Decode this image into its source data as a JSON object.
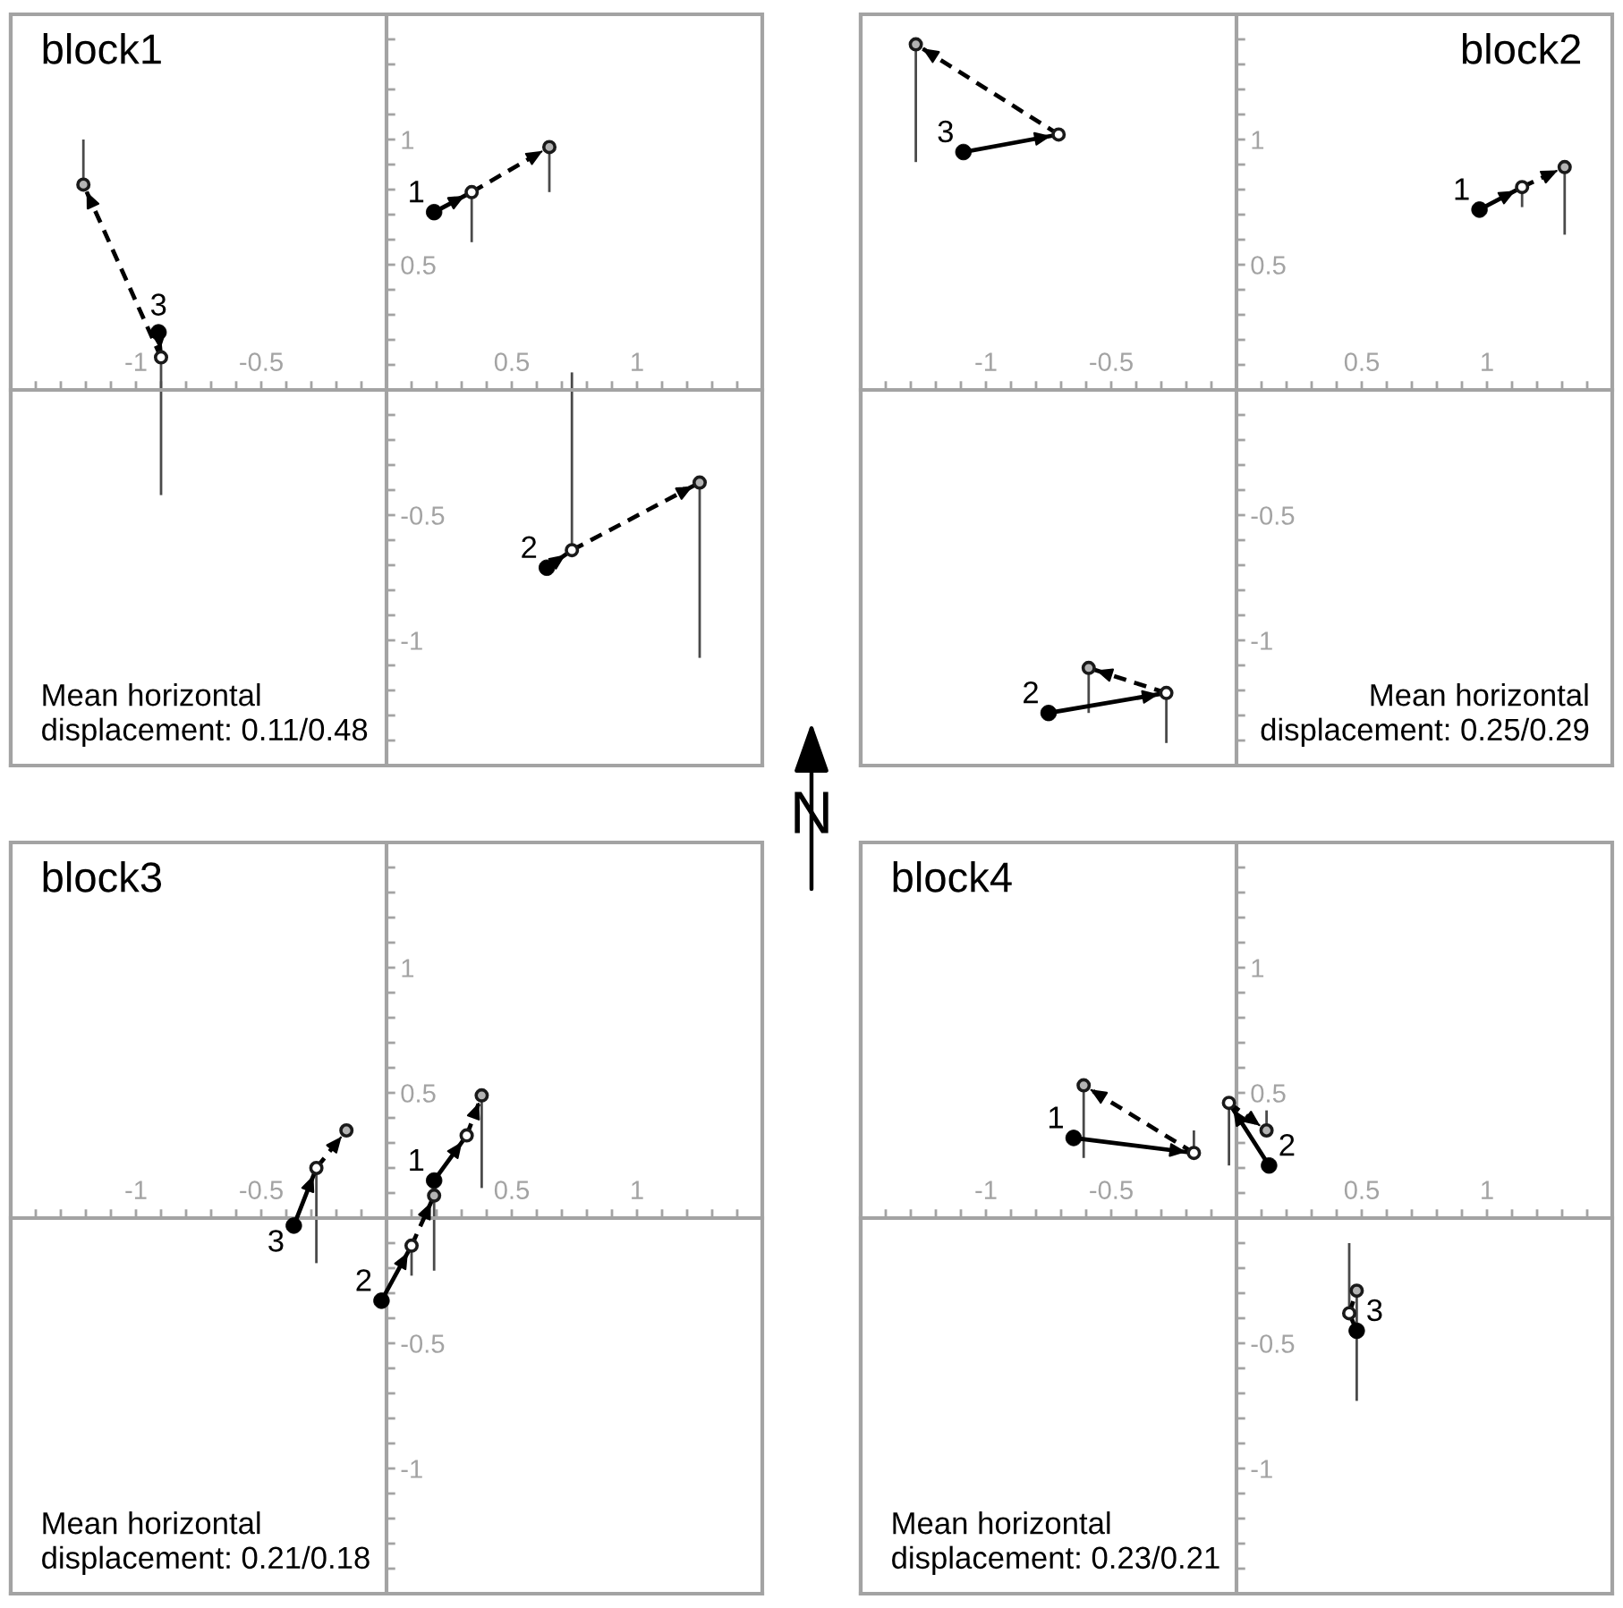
{
  "chart_data": [
    {
      "type": "scatter",
      "title": "block1",
      "xlim": [
        -1.5,
        1.5
      ],
      "ylim": [
        -1.5,
        1.5
      ],
      "xticks": [
        {
          "value": -1.4,
          "label": null
        },
        {
          "value": -1.3,
          "label": null
        },
        {
          "value": -1.2,
          "label": null
        },
        {
          "value": -1.1,
          "label": null
        },
        -1,
        {
          "value": -0.9,
          "label": null
        },
        {
          "value": -0.8,
          "label": null
        },
        {
          "value": -0.7,
          "label": null
        },
        {
          "value": -0.6,
          "label": null
        },
        -0.5,
        {
          "value": -0.4,
          "label": null
        },
        {
          "value": -0.3,
          "label": null
        },
        {
          "value": -0.2,
          "label": null
        },
        {
          "value": -0.1,
          "label": null
        },
        {
          "value": 0.1,
          "label": null
        },
        {
          "value": 0.2,
          "label": null
        },
        {
          "value": 0.3,
          "label": null
        },
        {
          "value": 0.4,
          "label": null
        },
        0.5,
        {
          "value": 0.6,
          "label": null
        },
        {
          "value": 0.7,
          "label": null
        },
        {
          "value": 0.8,
          "label": null
        },
        {
          "value": 0.9,
          "label": null
        },
        1,
        {
          "value": 1.1,
          "label": null
        },
        {
          "value": 1.2,
          "label": null
        },
        {
          "value": 1.3,
          "label": null
        },
        {
          "value": 1.4,
          "label": null
        }
      ],
      "yticks": [
        {
          "value": -1.4,
          "label": null
        },
        {
          "value": -1.3,
          "label": null
        },
        {
          "value": -1.2,
          "label": null
        },
        {
          "value": -1.1,
          "label": null
        },
        -1,
        {
          "value": -0.9,
          "label": null
        },
        {
          "value": -0.8,
          "label": null
        },
        {
          "value": -0.7,
          "label": null
        },
        {
          "value": -0.6,
          "label": null
        },
        -0.5,
        {
          "value": -0.4,
          "label": null
        },
        {
          "value": -0.3,
          "label": null
        },
        {
          "value": -0.2,
          "label": null
        },
        {
          "value": -0.1,
          "label": null
        },
        {
          "value": 0.1,
          "label": null
        },
        {
          "value": 0.2,
          "label": null
        },
        {
          "value": 0.3,
          "label": null
        },
        {
          "value": 0.4,
          "label": null
        },
        0.5,
        {
          "value": 0.6,
          "label": null
        },
        {
          "value": 0.7,
          "label": null
        },
        {
          "value": 0.8,
          "label": null
        },
        {
          "value": 0.9,
          "label": null
        },
        1,
        {
          "value": 1.1,
          "label": null
        },
        {
          "value": 1.2,
          "label": null
        },
        {
          "value": 1.3,
          "label": null
        },
        {
          "value": 1.4,
          "label": null
        }
      ],
      "series": [
        {
          "type": "scatter",
          "marker": "circle",
          "color": "#000000",
          "x": [
            0.19,
            0.64,
            -0.91
          ],
          "values": [
            0.71,
            -0.71,
            0.23
          ]
        },
        {
          "type": "scatter",
          "marker": "circle",
          "color": "#ffffff",
          "x": [
            0.34,
            0.74,
            -0.9
          ],
          "values": [
            0.79,
            -0.64,
            0.13
          ],
          "errors": [
            [
              0.59,
              0.79
            ],
            [
              -0.64,
              0.07
            ],
            [
              -0.42,
              0.13
            ]
          ]
        },
        {
          "type": "scatter",
          "marker": "circle",
          "color": "#b3b3b3",
          "x": [
            0.65,
            1.25,
            -1.21
          ],
          "values": [
            0.97,
            -0.37,
            0.82
          ],
          "errors": [
            [
              0.79,
              0.97
            ],
            [
              -1.07,
              -0.37
            ],
            [
              0.82,
              1.0
            ]
          ]
        },
        {
          "type": "line",
          "line_style": "solid",
          "color": "#000000",
          "x": [
            0.19,
            0.34
          ],
          "values": [
            0.71,
            0.79
          ]
        },
        {
          "type": "line",
          "line_style": "dashed",
          "color": "#000000",
          "x": [
            0.34,
            0.65
          ],
          "values": [
            0.79,
            0.97
          ]
        },
        {
          "type": "line",
          "line_style": "solid",
          "color": "#000000",
          "x": [
            0.64,
            0.74
          ],
          "values": [
            -0.71,
            -0.64
          ]
        },
        {
          "type": "line",
          "line_style": "dashed",
          "color": "#000000",
          "x": [
            0.74,
            1.25
          ],
          "values": [
            -0.64,
            -0.37
          ]
        },
        {
          "type": "line",
          "line_style": "solid",
          "color": "#000000",
          "x": [
            -0.91,
            -0.9
          ],
          "values": [
            0.23,
            0.13
          ]
        },
        {
          "type": "line",
          "line_style": "dashed",
          "color": "#000000",
          "x": [
            -0.9,
            -1.21
          ],
          "values": [
            0.13,
            0.82
          ]
        }
      ],
      "annotations": [
        {
          "text": "1",
          "x": 0.19,
          "y": 0.71
        },
        {
          "text": "2",
          "x": 0.64,
          "y": -0.71
        },
        {
          "text": "3",
          "x": -0.91,
          "y": 0.23
        },
        "Mean horizontal\ndisplacement: 0.11/0.48"
      ]
    },
    {
      "type": "scatter",
      "title": "block2",
      "xlim": [
        -1.5,
        1.5
      ],
      "ylim": [
        -1.5,
        1.5
      ],
      "xticks": [
        {
          "value": -1.4,
          "label": null
        },
        {
          "value": -1.3,
          "label": null
        },
        {
          "value": -1.2,
          "label": null
        },
        {
          "value": -1.1,
          "label": null
        },
        -1,
        {
          "value": -0.9,
          "label": null
        },
        {
          "value": -0.8,
          "label": null
        },
        {
          "value": -0.7,
          "label": null
        },
        {
          "value": -0.6,
          "label": null
        },
        -0.5,
        {
          "value": -0.4,
          "label": null
        },
        {
          "value": -0.3,
          "label": null
        },
        {
          "value": -0.2,
          "label": null
        },
        {
          "value": -0.1,
          "label": null
        },
        {
          "value": 0.1,
          "label": null
        },
        {
          "value": 0.2,
          "label": null
        },
        {
          "value": 0.3,
          "label": null
        },
        {
          "value": 0.4,
          "label": null
        },
        0.5,
        {
          "value": 0.6,
          "label": null
        },
        {
          "value": 0.7,
          "label": null
        },
        {
          "value": 0.8,
          "label": null
        },
        {
          "value": 0.9,
          "label": null
        },
        1,
        {
          "value": 1.1,
          "label": null
        },
        {
          "value": 1.2,
          "label": null
        },
        {
          "value": 1.3,
          "label": null
        },
        {
          "value": 1.4,
          "label": null
        }
      ],
      "yticks": [
        {
          "value": -1.4,
          "label": null
        },
        {
          "value": -1.3,
          "label": null
        },
        {
          "value": -1.2,
          "label": null
        },
        {
          "value": -1.1,
          "label": null
        },
        -1,
        {
          "value": -0.9,
          "label": null
        },
        {
          "value": -0.8,
          "label": null
        },
        {
          "value": -0.7,
          "label": null
        },
        {
          "value": -0.6,
          "label": null
        },
        -0.5,
        {
          "value": -0.4,
          "label": null
        },
        {
          "value": -0.3,
          "label": null
        },
        {
          "value": -0.2,
          "label": null
        },
        {
          "value": -0.1,
          "label": null
        },
        {
          "value": 0.1,
          "label": null
        },
        {
          "value": 0.2,
          "label": null
        },
        {
          "value": 0.3,
          "label": null
        },
        {
          "value": 0.4,
          "label": null
        },
        0.5,
        {
          "value": 0.6,
          "label": null
        },
        {
          "value": 0.7,
          "label": null
        },
        {
          "value": 0.8,
          "label": null
        },
        {
          "value": 0.9,
          "label": null
        },
        1,
        {
          "value": 1.1,
          "label": null
        },
        {
          "value": 1.2,
          "label": null
        },
        {
          "value": 1.3,
          "label": null
        },
        {
          "value": 1.4,
          "label": null
        }
      ],
      "series": [
        {
          "type": "scatter",
          "marker": "circle",
          "color": "#000000",
          "x": [
            0.97,
            -0.75,
            -1.09
          ],
          "values": [
            0.72,
            -1.29,
            0.95
          ]
        },
        {
          "type": "scatter",
          "marker": "circle",
          "color": "#ffffff",
          "x": [
            1.14,
            -0.28,
            -0.71
          ],
          "values": [
            0.81,
            -1.21,
            1.02
          ],
          "errors": [
            [
              0.73,
              0.81
            ],
            [
              -1.41,
              -1.21
            ],
            null
          ]
        },
        {
          "type": "scatter",
          "marker": "circle",
          "color": "#b3b3b3",
          "x": [
            1.31,
            -0.59,
            -1.28
          ],
          "values": [
            0.89,
            -1.11,
            1.38
          ],
          "errors": [
            [
              0.62,
              0.89
            ],
            [
              -1.29,
              -1.11
            ],
            [
              0.91,
              1.38
            ]
          ]
        },
        {
          "type": "line",
          "line_style": "solid",
          "color": "#000000",
          "x": [
            0.97,
            1.14
          ],
          "values": [
            0.72,
            0.81
          ]
        },
        {
          "type": "line",
          "line_style": "dashed",
          "color": "#000000",
          "x": [
            1.14,
            1.31
          ],
          "values": [
            0.81,
            0.89
          ]
        },
        {
          "type": "line",
          "line_style": "solid",
          "color": "#000000",
          "x": [
            -0.75,
            -0.28
          ],
          "values": [
            -1.29,
            -1.21
          ]
        },
        {
          "type": "line",
          "line_style": "dashed",
          "color": "#000000",
          "x": [
            -0.28,
            -0.59
          ],
          "values": [
            -1.21,
            -1.11
          ]
        },
        {
          "type": "line",
          "line_style": "solid",
          "color": "#000000",
          "x": [
            -1.09,
            -0.71
          ],
          "values": [
            0.95,
            1.02
          ]
        },
        {
          "type": "line",
          "line_style": "dashed",
          "color": "#000000",
          "x": [
            -0.71,
            -1.28
          ],
          "values": [
            1.02,
            1.38
          ]
        }
      ],
      "annotations": [
        {
          "text": "1",
          "x": 0.97,
          "y": 0.72
        },
        {
          "text": "2",
          "x": -0.75,
          "y": -1.29
        },
        {
          "text": "3",
          "x": -1.09,
          "y": 0.95
        },
        "Mean horizontal\ndisplacement: 0.25/0.29"
      ]
    },
    {
      "type": "other",
      "annotations": [
        "N"
      ]
    },
    {
      "type": "scatter",
      "title": "block3",
      "xlim": [
        -1.5,
        1.5
      ],
      "ylim": [
        -1.5,
        1.5
      ],
      "xticks": [
        {
          "value": -1.4,
          "label": null
        },
        {
          "value": -1.3,
          "label": null
        },
        {
          "value": -1.2,
          "label": null
        },
        {
          "value": -1.1,
          "label": null
        },
        -1,
        {
          "value": -0.9,
          "label": null
        },
        {
          "value": -0.8,
          "label": null
        },
        {
          "value": -0.7,
          "label": null
        },
        {
          "value": -0.6,
          "label": null
        },
        -0.5,
        {
          "value": -0.4,
          "label": null
        },
        {
          "value": -0.3,
          "label": null
        },
        {
          "value": -0.2,
          "label": null
        },
        {
          "value": -0.1,
          "label": null
        },
        {
          "value": 0.1,
          "label": null
        },
        {
          "value": 0.2,
          "label": null
        },
        {
          "value": 0.3,
          "label": null
        },
        {
          "value": 0.4,
          "label": null
        },
        0.5,
        {
          "value": 0.6,
          "label": null
        },
        {
          "value": 0.7,
          "label": null
        },
        {
          "value": 0.8,
          "label": null
        },
        {
          "value": 0.9,
          "label": null
        },
        1,
        {
          "value": 1.1,
          "label": null
        },
        {
          "value": 1.2,
          "label": null
        },
        {
          "value": 1.3,
          "label": null
        },
        {
          "value": 1.4,
          "label": null
        }
      ],
      "yticks": [
        {
          "value": -1.4,
          "label": null
        },
        {
          "value": -1.3,
          "label": null
        },
        {
          "value": -1.2,
          "label": null
        },
        {
          "value": -1.1,
          "label": null
        },
        -1,
        {
          "value": -0.9,
          "label": null
        },
        {
          "value": -0.8,
          "label": null
        },
        {
          "value": -0.7,
          "label": null
        },
        {
          "value": -0.6,
          "label": null
        },
        -0.5,
        {
          "value": -0.4,
          "label": null
        },
        {
          "value": -0.3,
          "label": null
        },
        {
          "value": -0.2,
          "label": null
        },
        {
          "value": -0.1,
          "label": null
        },
        {
          "value": 0.1,
          "label": null
        },
        {
          "value": 0.2,
          "label": null
        },
        {
          "value": 0.3,
          "label": null
        },
        {
          "value": 0.4,
          "label": null
        },
        0.5,
        {
          "value": 0.6,
          "label": null
        },
        {
          "value": 0.7,
          "label": null
        },
        {
          "value": 0.8,
          "label": null
        },
        {
          "value": 0.9,
          "label": null
        },
        1,
        {
          "value": 1.1,
          "label": null
        },
        {
          "value": 1.2,
          "label": null
        },
        {
          "value": 1.3,
          "label": null
        },
        {
          "value": 1.4,
          "label": null
        }
      ],
      "series": [
        {
          "type": "scatter",
          "marker": "circle",
          "color": "#000000",
          "x": [
            0.19,
            -0.02,
            -0.37
          ],
          "values": [
            0.15,
            -0.33,
            -0.03
          ]
        },
        {
          "type": "scatter",
          "marker": "circle",
          "color": "#ffffff",
          "x": [
            0.32,
            0.1,
            -0.28
          ],
          "values": [
            0.33,
            -0.11,
            0.2
          ],
          "errors": [
            null,
            [
              -0.23,
              -0.11
            ],
            [
              -0.18,
              0.2
            ]
          ]
        },
        {
          "type": "scatter",
          "marker": "circle",
          "color": "#b3b3b3",
          "x": [
            0.38,
            0.19,
            -0.16
          ],
          "values": [
            0.49,
            0.09,
            0.35
          ],
          "errors": [
            [
              0.12,
              0.49
            ],
            [
              -0.21,
              0.09
            ],
            null
          ]
        },
        {
          "type": "line",
          "line_style": "solid",
          "color": "#000000",
          "x": [
            0.19,
            0.32
          ],
          "values": [
            0.15,
            0.33
          ]
        },
        {
          "type": "line",
          "line_style": "dashed",
          "color": "#000000",
          "x": [
            0.32,
            0.38
          ],
          "values": [
            0.33,
            0.49
          ]
        },
        {
          "type": "line",
          "line_style": "solid",
          "color": "#000000",
          "x": [
            -0.02,
            0.1
          ],
          "values": [
            -0.33,
            -0.11
          ]
        },
        {
          "type": "line",
          "line_style": "dashed",
          "color": "#000000",
          "x": [
            0.1,
            0.19
          ],
          "values": [
            -0.11,
            0.09
          ]
        },
        {
          "type": "line",
          "line_style": "solid",
          "color": "#000000",
          "x": [
            -0.37,
            -0.28
          ],
          "values": [
            -0.03,
            0.2
          ]
        },
        {
          "type": "line",
          "line_style": "dashed",
          "color": "#000000",
          "x": [
            -0.28,
            -0.16
          ],
          "values": [
            0.2,
            0.35
          ]
        }
      ],
      "annotations": [
        {
          "text": "1",
          "x": 0.19,
          "y": 0.15
        },
        {
          "text": "2",
          "x": -0.02,
          "y": -0.33
        },
        {
          "text": "3",
          "x": -0.37,
          "y": -0.03
        },
        "Mean horizontal\ndisplacement: 0.21/0.18"
      ]
    },
    {
      "type": "scatter",
      "title": "block4",
      "xlim": [
        -1.5,
        1.5
      ],
      "ylim": [
        -1.5,
        1.5
      ],
      "xticks": [
        {
          "value": -1.4,
          "label": null
        },
        {
          "value": -1.3,
          "label": null
        },
        {
          "value": -1.2,
          "label": null
        },
        {
          "value": -1.1,
          "label": null
        },
        -1,
        {
          "value": -0.9,
          "label": null
        },
        {
          "value": -0.8,
          "label": null
        },
        {
          "value": -0.7,
          "label": null
        },
        {
          "value": -0.6,
          "label": null
        },
        -0.5,
        {
          "value": -0.4,
          "label": null
        },
        {
          "value": -0.3,
          "label": null
        },
        {
          "value": -0.2,
          "label": null
        },
        {
          "value": -0.1,
          "label": null
        },
        {
          "value": 0.1,
          "label": null
        },
        {
          "value": 0.2,
          "label": null
        },
        {
          "value": 0.3,
          "label": null
        },
        {
          "value": 0.4,
          "label": null
        },
        0.5,
        {
          "value": 0.6,
          "label": null
        },
        {
          "value": 0.7,
          "label": null
        },
        {
          "value": 0.8,
          "label": null
        },
        {
          "value": 0.9,
          "label": null
        },
        1,
        {
          "value": 1.1,
          "label": null
        },
        {
          "value": 1.2,
          "label": null
        },
        {
          "value": 1.3,
          "label": null
        },
        {
          "value": 1.4,
          "label": null
        }
      ],
      "yticks": [
        {
          "value": -1.4,
          "label": null
        },
        {
          "value": -1.3,
          "label": null
        },
        {
          "value": -1.2,
          "label": null
        },
        {
          "value": -1.1,
          "label": null
        },
        -1,
        {
          "value": -0.9,
          "label": null
        },
        {
          "value": -0.8,
          "label": null
        },
        {
          "value": -0.7,
          "label": null
        },
        {
          "value": -0.6,
          "label": null
        },
        -0.5,
        {
          "value": -0.4,
          "label": null
        },
        {
          "value": -0.3,
          "label": null
        },
        {
          "value": -0.2,
          "label": null
        },
        {
          "value": -0.1,
          "label": null
        },
        {
          "value": 0.1,
          "label": null
        },
        {
          "value": 0.2,
          "label": null
        },
        {
          "value": 0.3,
          "label": null
        },
        {
          "value": 0.4,
          "label": null
        },
        0.5,
        {
          "value": 0.6,
          "label": null
        },
        {
          "value": 0.7,
          "label": null
        },
        {
          "value": 0.8,
          "label": null
        },
        {
          "value": 0.9,
          "label": null
        },
        1,
        {
          "value": 1.1,
          "label": null
        },
        {
          "value": 1.2,
          "label": null
        },
        {
          "value": 1.3,
          "label": null
        },
        {
          "value": 1.4,
          "label": null
        }
      ],
      "series": [
        {
          "type": "scatter",
          "marker": "circle",
          "color": "#000000",
          "x": [
            -0.65,
            0.13,
            0.48
          ],
          "values": [
            0.32,
            0.21,
            -0.45
          ]
        },
        {
          "type": "scatter",
          "marker": "circle",
          "color": "#ffffff",
          "x": [
            -0.17,
            -0.03,
            0.45
          ],
          "values": [
            0.26,
            0.46,
            -0.38
          ],
          "errors": [
            [
              0.26,
              0.35
            ],
            [
              0.21,
              0.46
            ],
            [
              -0.38,
              -0.1
            ]
          ]
        },
        {
          "type": "scatter",
          "marker": "circle",
          "color": "#b3b3b3",
          "x": [
            -0.61,
            0.12,
            0.48
          ],
          "values": [
            0.53,
            0.35,
            -0.29
          ],
          "errors": [
            [
              0.24,
              0.53
            ],
            [
              0.35,
              0.43
            ],
            [
              -0.73,
              -0.29
            ]
          ]
        },
        {
          "type": "line",
          "line_style": "solid",
          "color": "#000000",
          "x": [
            -0.65,
            -0.17
          ],
          "values": [
            0.32,
            0.26
          ]
        },
        {
          "type": "line",
          "line_style": "dashed",
          "color": "#000000",
          "x": [
            -0.17,
            -0.61
          ],
          "values": [
            0.26,
            0.53
          ]
        },
        {
          "type": "line",
          "line_style": "solid",
          "color": "#000000",
          "x": [
            0.13,
            -0.03
          ],
          "values": [
            0.21,
            0.46
          ]
        },
        {
          "type": "line",
          "line_style": "dashed",
          "color": "#000000",
          "x": [
            -0.03,
            0.12
          ],
          "values": [
            0.46,
            0.35
          ]
        },
        {
          "type": "line",
          "line_style": "solid",
          "color": "#000000",
          "x": [
            0.48,
            0.45
          ],
          "values": [
            -0.45,
            -0.38
          ]
        },
        {
          "type": "line",
          "line_style": "dashed",
          "color": "#000000",
          "x": [
            0.45,
            0.48
          ],
          "values": [
            -0.38,
            -0.29
          ]
        }
      ],
      "annotations": [
        {
          "text": "1",
          "x": -0.65,
          "y": 0.32
        },
        {
          "text": "2",
          "x": 0.13,
          "y": 0.21
        },
        {
          "text": "3",
          "x": 0.48,
          "y": -0.45
        },
        "Mean horizontal\ndisplacement: 0.23/0.21"
      ]
    }
  ]
}
